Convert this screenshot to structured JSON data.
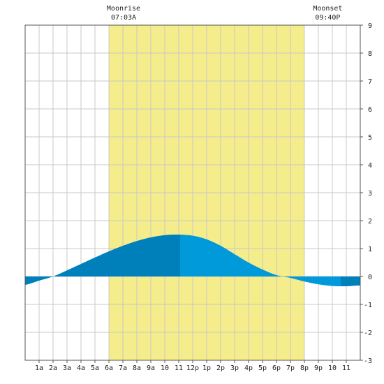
{
  "chart_data": {
    "type": "area",
    "title": "",
    "xlabel": "",
    "ylabel": "",
    "x_unit": "hour of day",
    "xlim": [
      0,
      24
    ],
    "ylim": [
      -3,
      9
    ],
    "grid": true,
    "x_tick_labels": [
      {
        "hour": 1,
        "label": "1a"
      },
      {
        "hour": 2,
        "label": "2a"
      },
      {
        "hour": 3,
        "label": "3a"
      },
      {
        "hour": 4,
        "label": "4a"
      },
      {
        "hour": 5,
        "label": "5a"
      },
      {
        "hour": 6,
        "label": "6a"
      },
      {
        "hour": 7,
        "label": "7a"
      },
      {
        "hour": 8,
        "label": "8a"
      },
      {
        "hour": 9,
        "label": "9a"
      },
      {
        "hour": 10,
        "label": "10"
      },
      {
        "hour": 11,
        "label": "11"
      },
      {
        "hour": 12,
        "label": "12p"
      },
      {
        "hour": 13,
        "label": "1p"
      },
      {
        "hour": 14,
        "label": "2p"
      },
      {
        "hour": 15,
        "label": "3p"
      },
      {
        "hour": 16,
        "label": "4p"
      },
      {
        "hour": 17,
        "label": "5p"
      },
      {
        "hour": 18,
        "label": "6p"
      },
      {
        "hour": 19,
        "label": "7p"
      },
      {
        "hour": 20,
        "label": "8p"
      },
      {
        "hour": 21,
        "label": "9p"
      },
      {
        "hour": 22,
        "label": "10"
      },
      {
        "hour": 23,
        "label": "11"
      }
    ],
    "y_ticks": [
      -3,
      -2,
      -1,
      0,
      1,
      2,
      3,
      4,
      5,
      6,
      7,
      8,
      9
    ],
    "daylight": {
      "start": 6.0,
      "end": 20.0,
      "color": "#f5ec8b"
    },
    "series": [
      {
        "x": [
          0,
          1,
          2,
          3,
          4,
          5,
          6,
          7,
          8,
          9,
          10,
          11,
          12,
          13,
          14,
          15,
          16,
          17,
          18,
          19,
          20,
          21,
          22,
          23,
          24
        ],
        "y": [
          -0.3,
          -0.15,
          0.0,
          0.22,
          0.45,
          0.68,
          0.9,
          1.1,
          1.27,
          1.4,
          1.48,
          1.5,
          1.46,
          1.33,
          1.1,
          0.8,
          0.5,
          0.25,
          0.05,
          -0.05,
          -0.18,
          -0.28,
          -0.34,
          -0.35,
          -0.32
        ]
      }
    ],
    "area_colors": {
      "night": "#0080bb",
      "day": "#0099da"
    },
    "shade_breaks": [
      11.1,
      22.6
    ],
    "annotations": [
      {
        "label": "Moonrise",
        "time": "07:03A",
        "hour": 7.05
      },
      {
        "label": "Moonset",
        "time": "09:40P",
        "hour": 21.67
      }
    ]
  }
}
